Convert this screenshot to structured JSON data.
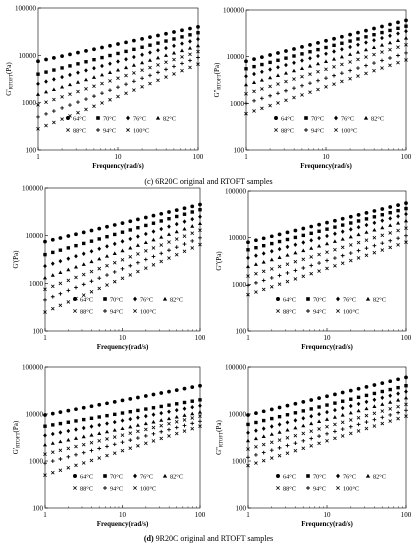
{
  "captions": [
    {
      "tag": "(c)",
      "text": "6R20C original and RTOFT samples"
    },
    {
      "tag": "(d)",
      "text": "9R20C original and RTOFT samples"
    }
  ],
  "legend": {
    "labels": [
      "64°C",
      "70°C",
      "76°C",
      "82°C",
      "88°C",
      "94°C",
      "100°C"
    ],
    "markers": [
      "circle",
      "square",
      "diamond",
      "triangle",
      "x",
      "plus",
      "x"
    ]
  },
  "chart_data": [
    {
      "type": "scatter",
      "log_x": true,
      "log_y": true,
      "xlabel": "Frequency(rad/s)",
      "ylabel": "G'",
      "ylabel_sub": "RTOFT",
      "ylabel_suffix": "(Pa)",
      "xlim": [
        1,
        100
      ],
      "ylim": [
        100,
        100000
      ],
      "xticks": [
        "1",
        "10",
        "100"
      ],
      "yticks": [
        "100",
        "1000",
        "10000",
        "100000"
      ],
      "series": [
        {
          "name": "64°C",
          "start": 7500,
          "end": 40000
        },
        {
          "name": "70°C",
          "start": 4000,
          "end": 30000
        },
        {
          "name": "76°C",
          "start": 2500,
          "end": 22000
        },
        {
          "name": "82°C",
          "start": 1500,
          "end": 16000
        },
        {
          "name": "88°C",
          "start": 900,
          "end": 12000
        },
        {
          "name": "94°C",
          "start": 500,
          "end": 9000
        },
        {
          "name": "100°C",
          "start": 280,
          "end": 6500
        }
      ]
    },
    {
      "type": "scatter",
      "log_x": true,
      "log_y": true,
      "xlabel": "Frequency(rad/s)",
      "ylabel": "G''",
      "ylabel_sub": "RTOFT",
      "ylabel_suffix": "(Pa)",
      "xlim": [
        1,
        100
      ],
      "ylim": [
        100,
        100000
      ],
      "xticks": [
        "1",
        "10",
        "100"
      ],
      "yticks": [
        "100",
        "1000",
        "10000",
        "100000"
      ],
      "series": [
        {
          "name": "64°C",
          "start": 8000,
          "end": 60000
        },
        {
          "name": "70°C",
          "start": 5500,
          "end": 45000
        },
        {
          "name": "76°C",
          "start": 3800,
          "end": 35000
        },
        {
          "name": "82°C",
          "start": 2500,
          "end": 25000
        },
        {
          "name": "88°C",
          "start": 1600,
          "end": 18000
        },
        {
          "name": "94°C",
          "start": 1000,
          "end": 12000
        },
        {
          "name": "100°C",
          "start": 600,
          "end": 8500
        }
      ]
    },
    {
      "type": "scatter",
      "log_x": true,
      "log_y": true,
      "xlabel": "Frequency(rad/s)",
      "ylabel": "G'",
      "ylabel_sub": "",
      "ylabel_suffix": "(Pa)",
      "xlim": [
        1,
        100
      ],
      "ylim": [
        100,
        100000
      ],
      "xticks": [
        "1",
        "10",
        "100"
      ],
      "yticks": [
        "100",
        "1000",
        "10000",
        "100000"
      ],
      "series": [
        {
          "name": "64°C",
          "start": 7500,
          "end": 45000
        },
        {
          "name": "70°C",
          "start": 4000,
          "end": 35000
        },
        {
          "name": "76°C",
          "start": 2300,
          "end": 25000
        },
        {
          "name": "82°C",
          "start": 1300,
          "end": 18000
        },
        {
          "name": "88°C",
          "start": 750,
          "end": 13000
        },
        {
          "name": "94°C",
          "start": 450,
          "end": 9000
        },
        {
          "name": "100°C",
          "start": 250,
          "end": 6500
        }
      ]
    },
    {
      "type": "scatter",
      "log_x": true,
      "log_y": true,
      "xlabel": "Frequency(rad/s)",
      "ylabel": "G''",
      "ylabel_sub": "",
      "ylabel_suffix": "(Pa)",
      "xlim": [
        1,
        100
      ],
      "ylim": [
        100,
        100000
      ],
      "xticks": [
        "1",
        "10",
        "100"
      ],
      "yticks": [
        "100",
        "1000",
        "10000",
        "100000"
      ],
      "series": [
        {
          "name": "64°C",
          "start": 8000,
          "end": 55000
        },
        {
          "name": "70°C",
          "start": 5500,
          "end": 42000
        },
        {
          "name": "76°C",
          "start": 3700,
          "end": 32000
        },
        {
          "name": "82°C",
          "start": 2400,
          "end": 23000
        },
        {
          "name": "88°C",
          "start": 1500,
          "end": 16000
        },
        {
          "name": "94°C",
          "start": 950,
          "end": 11000
        },
        {
          "name": "100°C",
          "start": 600,
          "end": 8000
        }
      ]
    },
    {
      "type": "scatter",
      "log_x": true,
      "log_y": true,
      "xlabel": "Frequency(rad/s)",
      "ylabel": "G'",
      "ylabel_sub": "RTOFT",
      "ylabel_suffix": "(Pa)",
      "xlim": [
        1,
        100
      ],
      "ylim": [
        100,
        100000
      ],
      "xticks": [
        "1",
        "10",
        "100"
      ],
      "yticks": [
        "100",
        "1000",
        "10000",
        "100000"
      ],
      "series": [
        {
          "name": "64°C",
          "start": 9500,
          "end": 40000
        },
        {
          "name": "70°C",
          "start": 5500,
          "end": 20000
        },
        {
          "name": "76°C",
          "start": 3500,
          "end": 15000
        },
        {
          "name": "82°C",
          "start": 2200,
          "end": 11000
        },
        {
          "name": "88°C",
          "start": 1400,
          "end": 9000
        },
        {
          "name": "94°C",
          "start": 900,
          "end": 7000
        },
        {
          "name": "100°C",
          "start": 500,
          "end": 5500
        }
      ]
    },
    {
      "type": "scatter",
      "log_x": true,
      "log_y": true,
      "xlabel": "Frequency(rad/s)",
      "ylabel": "G''",
      "ylabel_sub": "RTOFT",
      "ylabel_suffix": "(Pa)",
      "xlim": [
        1,
        100
      ],
      "ylim": [
        100,
        100000
      ],
      "xticks": [
        "1",
        "10",
        "100"
      ],
      "yticks": [
        "100",
        "1000",
        "10000",
        "100000"
      ],
      "series": [
        {
          "name": "64°C",
          "start": 9500,
          "end": 60000
        },
        {
          "name": "70°C",
          "start": 6000,
          "end": 40000
        },
        {
          "name": "76°C",
          "start": 4000,
          "end": 30000
        },
        {
          "name": "82°C",
          "start": 2700,
          "end": 22000
        },
        {
          "name": "88°C",
          "start": 1800,
          "end": 16000
        },
        {
          "name": "94°C",
          "start": 1200,
          "end": 12000
        },
        {
          "name": "100°C",
          "start": 800,
          "end": 9000
        }
      ]
    }
  ]
}
